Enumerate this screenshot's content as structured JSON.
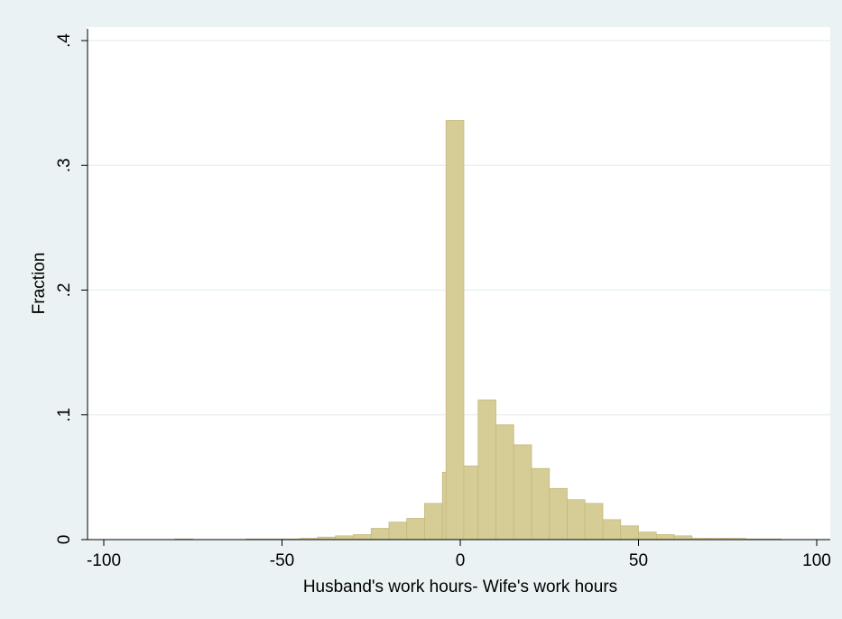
{
  "chart_data": {
    "type": "bar",
    "subtype": "histogram",
    "title": "",
    "xlabel": "Husband's work hours- Wife's work hours",
    "ylabel": "Fraction",
    "xlim": [
      -100,
      100
    ],
    "ylim": [
      0,
      0.4
    ],
    "bin_width": 5,
    "x_ticks": [
      {
        "value": -100,
        "label": "-100"
      },
      {
        "value": -50,
        "label": "-50"
      },
      {
        "value": 0,
        "label": "0"
      },
      {
        "value": 50,
        "label": "50"
      },
      {
        "value": 100,
        "label": "100"
      }
    ],
    "y_ticks": [
      {
        "value": 0,
        "label": "0"
      },
      {
        "value": 0.1,
        "label": ".1"
      },
      {
        "value": 0.2,
        "label": ".2"
      },
      {
        "value": 0.3,
        "label": ".3"
      },
      {
        "value": 0.4,
        "label": ".4"
      }
    ],
    "grid": "horizontal",
    "bars": [
      {
        "x0": -80,
        "x1": -75,
        "value": 0.0005
      },
      {
        "x0": -60,
        "x1": -55,
        "value": 0.0005
      },
      {
        "x0": -55,
        "x1": -50,
        "value": 0.0005
      },
      {
        "x0": -50,
        "x1": -45,
        "value": 0.0005
      },
      {
        "x0": -45,
        "x1": -40,
        "value": 0.001
      },
      {
        "x0": -40,
        "x1": -35,
        "value": 0.002
      },
      {
        "x0": -35,
        "x1": -30,
        "value": 0.003
      },
      {
        "x0": -30,
        "x1": -25,
        "value": 0.004
      },
      {
        "x0": -25,
        "x1": -20,
        "value": 0.009
      },
      {
        "x0": -20,
        "x1": -15,
        "value": 0.014
      },
      {
        "x0": -15,
        "x1": -10,
        "value": 0.017
      },
      {
        "x0": -10,
        "x1": -5,
        "value": 0.029
      },
      {
        "x0": -5,
        "x1": 0,
        "value": 0.054
      },
      {
        "x0": -4,
        "x1": 1,
        "value": 0.336
      },
      {
        "x0": 1,
        "x1": 5,
        "value": 0.059
      },
      {
        "x0": 5,
        "x1": 10,
        "value": 0.112
      },
      {
        "x0": 10,
        "x1": 15,
        "value": 0.092
      },
      {
        "x0": 15,
        "x1": 20,
        "value": 0.076
      },
      {
        "x0": 20,
        "x1": 25,
        "value": 0.057
      },
      {
        "x0": 25,
        "x1": 30,
        "value": 0.041
      },
      {
        "x0": 30,
        "x1": 35,
        "value": 0.032
      },
      {
        "x0": 35,
        "x1": 40,
        "value": 0.029
      },
      {
        "x0": 40,
        "x1": 45,
        "value": 0.016
      },
      {
        "x0": 45,
        "x1": 50,
        "value": 0.011
      },
      {
        "x0": 50,
        "x1": 55,
        "value": 0.006
      },
      {
        "x0": 55,
        "x1": 60,
        "value": 0.004
      },
      {
        "x0": 60,
        "x1": 65,
        "value": 0.003
      },
      {
        "x0": 65,
        "x1": 70,
        "value": 0.001
      },
      {
        "x0": 70,
        "x1": 75,
        "value": 0.001
      },
      {
        "x0": 75,
        "x1": 80,
        "value": 0.001
      },
      {
        "x0": 80,
        "x1": 85,
        "value": 0.0005
      },
      {
        "x0": 85,
        "x1": 90,
        "value": 0.0005
      }
    ],
    "colors": {
      "outer_background": "#eaf2f3",
      "plot_background": "#ffffff",
      "bar_fill": "#d6cc96",
      "bar_stroke": "#c4b97e",
      "grid": "#e6eef0",
      "axis": "#000000"
    }
  }
}
